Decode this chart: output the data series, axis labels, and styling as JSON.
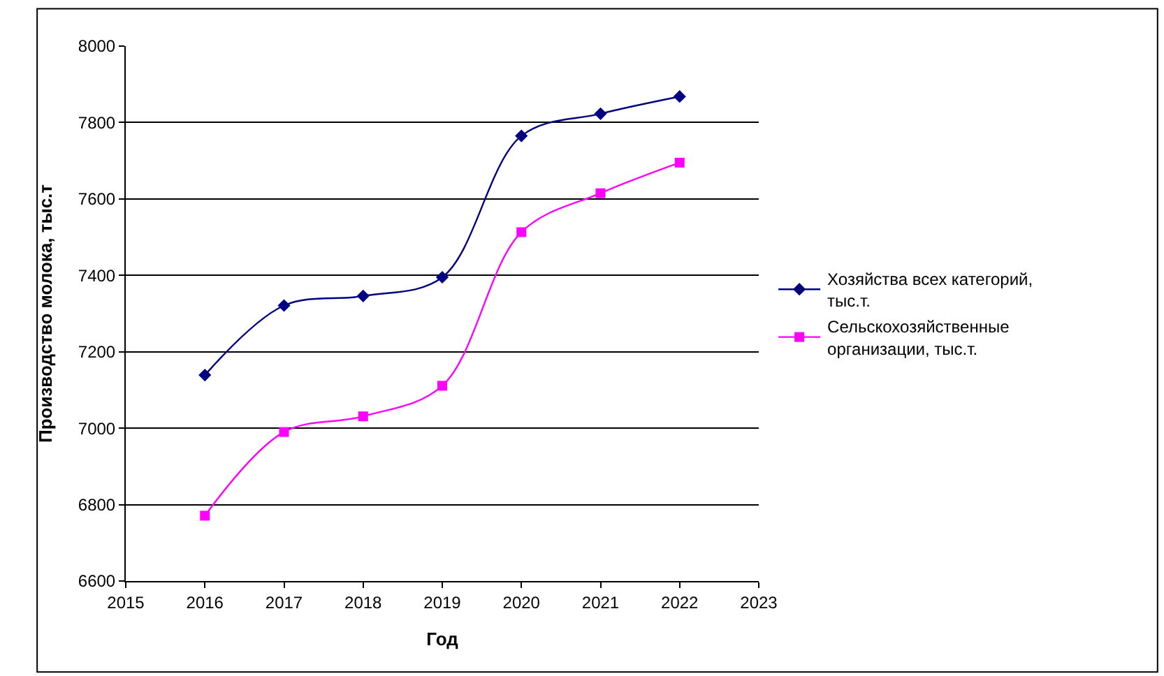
{
  "chart_data": {
    "type": "line",
    "xlabel": "Год",
    "ylabel": "Производство молока, тыс.т",
    "x": [
      2016,
      2017,
      2018,
      2019,
      2020,
      2021,
      2022
    ],
    "series": [
      {
        "name": "Хозяйства всех категорий, тыс.т.",
        "color": "#000080",
        "marker": "diamond",
        "values": [
          7139,
          7321,
          7346,
          7395,
          7765,
          7823,
          7868
        ]
      },
      {
        "name": "Сельскохозяйственные организации, тыс.т.",
        "color": "#ff00ff",
        "marker": "square",
        "values": [
          6771,
          6990,
          7031,
          7111,
          7513,
          7615,
          7695
        ]
      }
    ],
    "xlim": [
      2015,
      2023
    ],
    "xticks": [
      2015,
      2016,
      2017,
      2018,
      2019,
      2020,
      2021,
      2022,
      2023
    ],
    "ylim": [
      6600,
      8000
    ],
    "yticks": [
      6600,
      6800,
      7000,
      7200,
      7400,
      7600,
      7800,
      8000
    ],
    "grid": "y",
    "legend": "right",
    "line_style": "solid"
  }
}
